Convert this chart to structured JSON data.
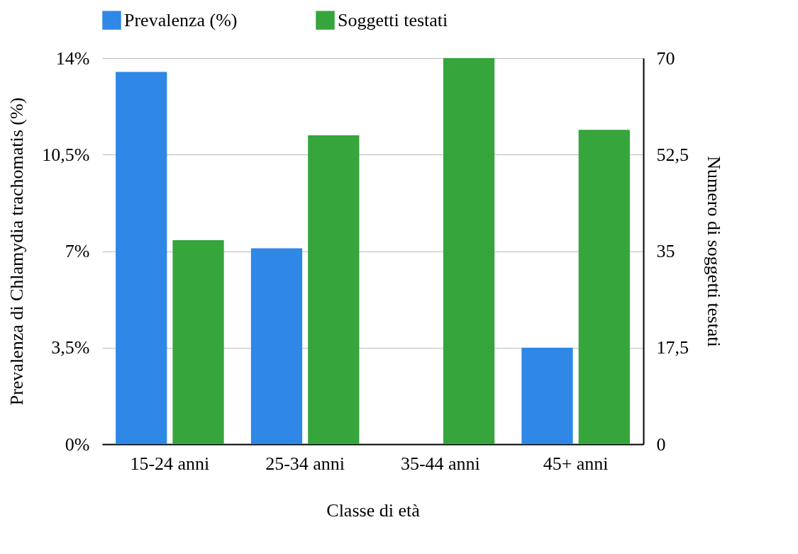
{
  "chart_data": {
    "type": "bar",
    "xlabel": "Classe di età",
    "ylabel": "Prevalenza di Chlamydia trachomatis (%)",
    "y2label": "Numero di soggetti testati",
    "categories": [
      "15-24 anni",
      "25-34 anni",
      "35-44 anni",
      "45+ anni"
    ],
    "series": [
      {
        "name": "Prevalenza (%)",
        "color": "#2f87e6",
        "values": [
          13.5,
          7.1,
          0,
          3.5
        ]
      },
      {
        "name": "Soggetti testati",
        "color": "#36a53c",
        "values": [
          37,
          56,
          70,
          57
        ],
        "axis": "y2"
      }
    ],
    "ylim": [
      0,
      14
    ],
    "yticks": [
      {
        "value": 0,
        "label": "0%"
      },
      {
        "value": 3.5,
        "label": "3,5%"
      },
      {
        "value": 7,
        "label": "7%"
      },
      {
        "value": 10.5,
        "label": "10,5%"
      },
      {
        "value": 14,
        "label": "14%"
      }
    ],
    "y2lim": [
      0,
      70
    ],
    "y2ticks": [
      0,
      {
        "value": 17.5,
        "label": "17,5"
      },
      35,
      {
        "value": 52.5,
        "label": "52,5"
      },
      70
    ],
    "grid": "y",
    "legend": "top"
  }
}
